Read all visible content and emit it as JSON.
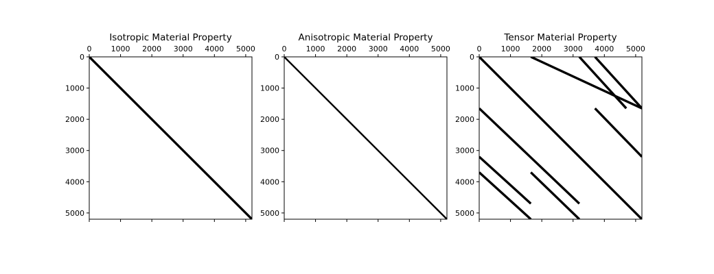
{
  "chart_data": [
    {
      "type": "spy",
      "title": "Isotropic Material Property",
      "xlim": [
        0,
        5200
      ],
      "ylim": [
        0,
        5200
      ],
      "x_ticks": [
        "0",
        "1000",
        "2000",
        "3000",
        "4000",
        "5000"
      ],
      "y_ticks": [
        "0",
        "1000",
        "2000",
        "3000",
        "4000",
        "5000"
      ],
      "bands": [
        {
          "x0": 0,
          "y0": 0,
          "x1": 5200,
          "y1": 5200,
          "weight": "heavy"
        }
      ]
    },
    {
      "type": "spy",
      "title": "Anisotropic Material Property",
      "xlim": [
        0,
        5200
      ],
      "ylim": [
        0,
        5200
      ],
      "x_ticks": [
        "0",
        "1000",
        "2000",
        "3000",
        "4000",
        "5000"
      ],
      "y_ticks": [
        "0",
        "1000",
        "2000",
        "3000",
        "4000",
        "5000"
      ],
      "bands": [
        {
          "x0": 0,
          "y0": 0,
          "x1": 5200,
          "y1": 5200,
          "weight": "medium"
        }
      ]
    },
    {
      "type": "spy",
      "title": "Tensor Material Property",
      "xlim": [
        0,
        5200
      ],
      "ylim": [
        0,
        5200
      ],
      "x_ticks": [
        "0",
        "1000",
        "2000",
        "3000",
        "4000",
        "5000"
      ],
      "y_ticks": [
        "0",
        "1000",
        "2000",
        "3000",
        "4000",
        "5000"
      ],
      "bands": [
        {
          "x0": 0,
          "y0": 0,
          "x1": 5200,
          "y1": 5200,
          "weight": "heavy"
        },
        {
          "x0": 1650,
          "y0": 0,
          "x1": 5200,
          "y1": 1650,
          "weight": "heavy"
        },
        {
          "x0": 0,
          "y0": 1650,
          "x1": 3200,
          "y1": 4700,
          "weight": "heavy"
        },
        {
          "x0": 3200,
          "y0": 0,
          "x1": 4700,
          "y1": 1650,
          "weight": "heavy"
        },
        {
          "x0": 3700,
          "y0": 0,
          "x1": 5200,
          "y1": 1650,
          "weight": "heavy"
        },
        {
          "x0": 3700,
          "y0": 1650,
          "x1": 5200,
          "y1": 3200,
          "weight": "heavy"
        },
        {
          "x0": 0,
          "y0": 3200,
          "x1": 1650,
          "y1": 4700,
          "weight": "heavy"
        },
        {
          "x0": 0,
          "y0": 3700,
          "x1": 1650,
          "y1": 5200,
          "weight": "heavy"
        },
        {
          "x0": 1650,
          "y0": 3700,
          "x1": 3200,
          "y1": 5200,
          "weight": "heavy"
        }
      ]
    }
  ]
}
